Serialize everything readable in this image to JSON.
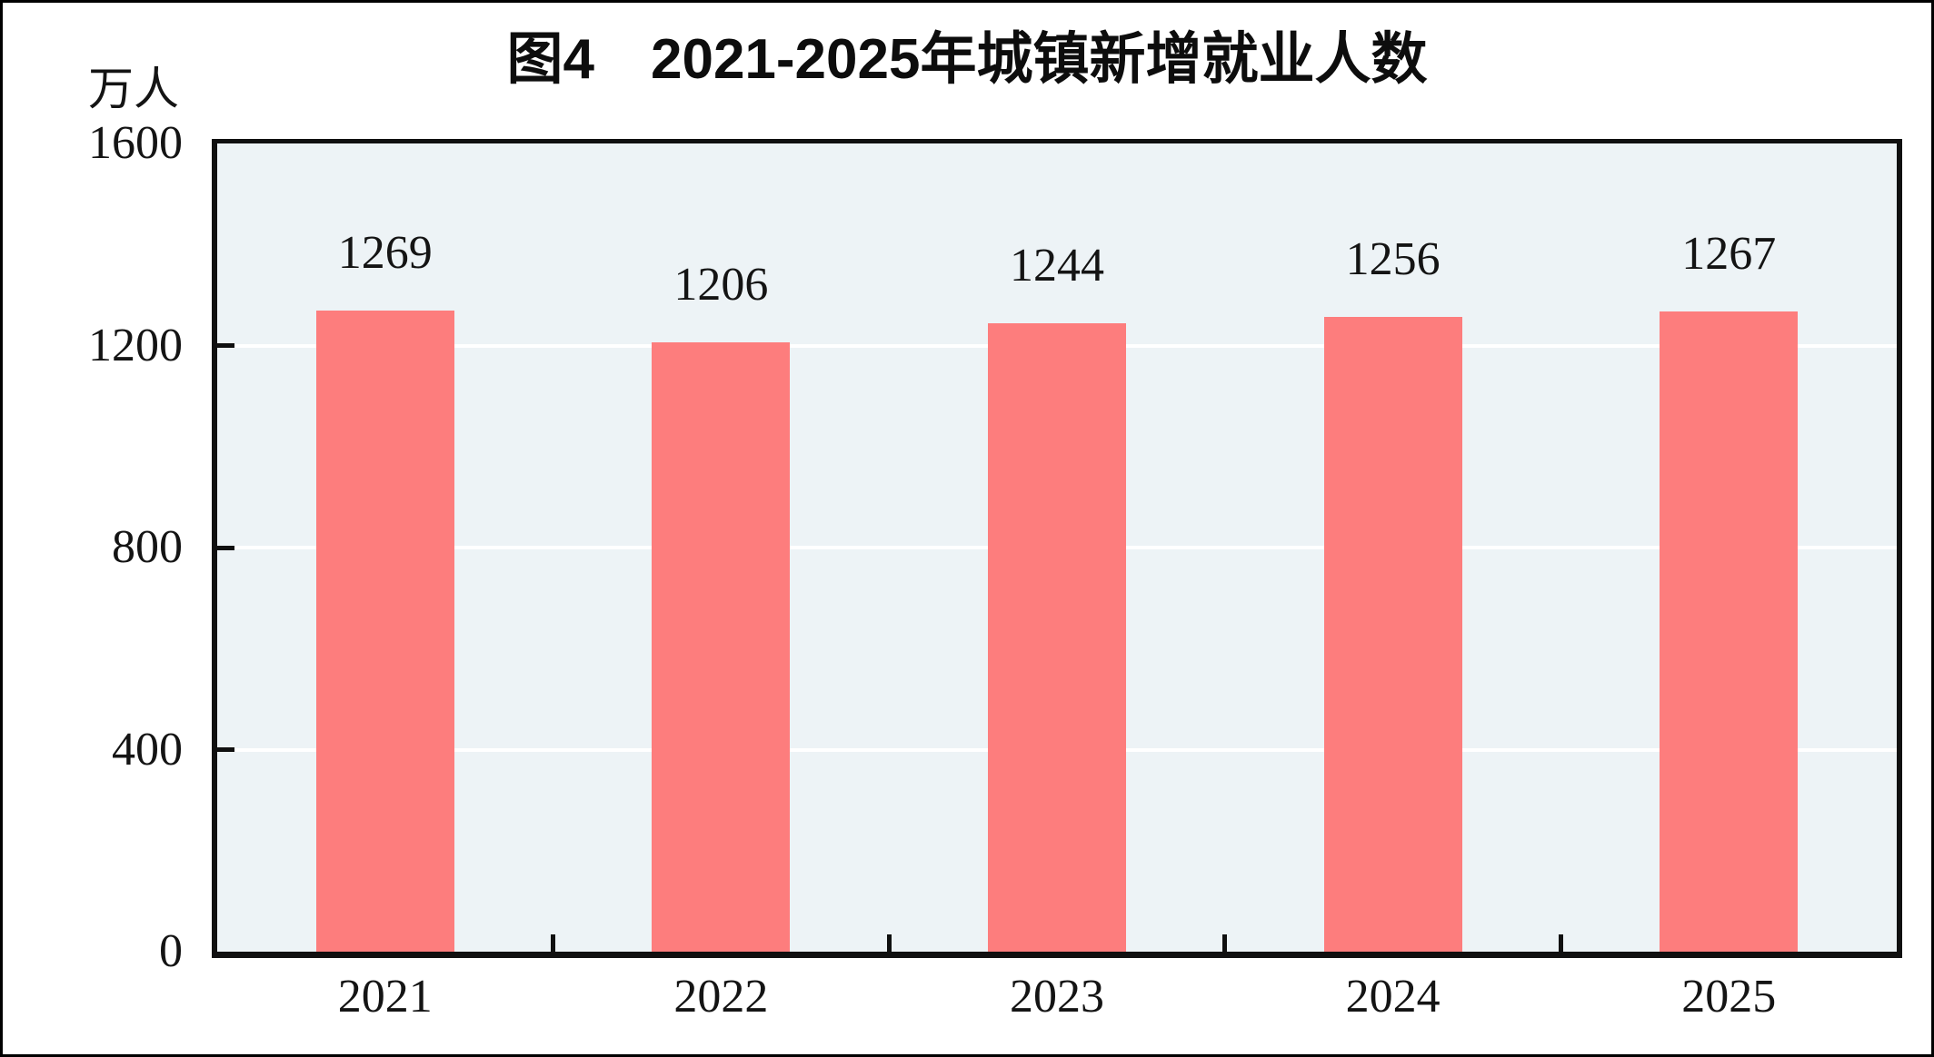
{
  "figure": {
    "title": "图4　2021-2025年城镇新增就业人数",
    "unit_label": "万人"
  },
  "chart_data": {
    "type": "bar",
    "title": "图4　2021-2025年城镇新增就业人数",
    "ylabel": "万人",
    "xlabel": "",
    "categories": [
      "2021",
      "2022",
      "2023",
      "2024",
      "2025"
    ],
    "values": [
      1269,
      1206,
      1244,
      1256,
      1267
    ],
    "ylim": [
      0,
      1600
    ],
    "yticks": [
      0,
      400,
      800,
      1200,
      1600
    ],
    "grid": true,
    "legend": "none",
    "value_labels": true,
    "colors": {
      "bar": "#FD7D7D",
      "plot_background": "#EDF3F6",
      "gridline": "#FFFFFF",
      "axis": "#101010",
      "text": "#141414"
    }
  }
}
